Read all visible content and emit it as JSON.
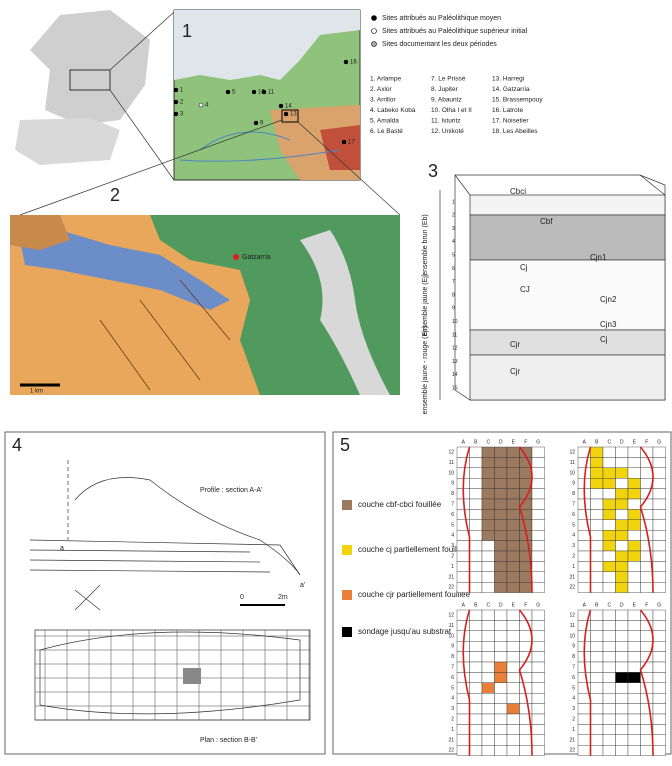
{
  "panel1": {
    "number": "1",
    "legend": [
      "Sites attribués au Paléolithique moyen",
      "Sites attribués au Paléolithique supérieur initial",
      "Sites documentant les deux périodes"
    ],
    "sites": [
      "1. Arlampe",
      "2. Axlor",
      "3. Arrillor",
      "4. Labeko Koba",
      "5. Amalda",
      "6. Le Basté",
      "7. Le Prissé",
      "8. Jupiter",
      "9. Abauntz",
      "10. Olha I et II",
      "11. Isturitz",
      "12. Unikoté",
      "13. Harregi",
      "14. Gatzarria",
      "15. Brassempouy",
      "16. Latrote",
      "17. Noisetier",
      "18. Les Abeilles"
    ],
    "map_labels": [
      "1",
      "2",
      "3",
      "4",
      "5",
      "16",
      "17",
      "10",
      "11",
      "9",
      "13",
      "14"
    ]
  },
  "panel2": {
    "number": "2",
    "site": "Gatzarria",
    "scale": "1 km"
  },
  "panel3": {
    "number": "3",
    "layers": [
      "Cbci",
      "Cbf",
      "Cj",
      "Cjn1",
      "CJ",
      "Cjn2",
      "Cjn3",
      "Cj",
      "Cjr",
      "Cjr"
    ],
    "groups": [
      "ensemble brun (Eb)",
      "ensemble jaune (Ej)",
      "ensemble jaune - rouge (Ejr)"
    ],
    "depths": [
      "1",
      "2",
      "3",
      "4",
      "5",
      "6",
      "7",
      "8",
      "9",
      "10",
      "11",
      "12",
      "13",
      "14",
      "15"
    ]
  },
  "panel4": {
    "number": "4",
    "profile": "Profile : section A-A'",
    "plan": "Plan : section B-B'",
    "scale_start": "0",
    "scale_end": "2m",
    "section_a": "a",
    "section_a2": "a'"
  },
  "panel5": {
    "number": "5",
    "legend": [
      "couche cbf-cbci fouillée",
      "couche cj partiellement fouillée",
      "couche cjr partiellement fouillée",
      "sondage jusqu'au substrat"
    ],
    "columns": [
      "A",
      "B",
      "C",
      "D",
      "E",
      "F",
      "G"
    ],
    "rows": [
      "12",
      "11",
      "10",
      "9",
      "8",
      "7",
      "6",
      "5",
      "4",
      "3",
      "2",
      "1",
      "21",
      "22"
    ]
  }
}
